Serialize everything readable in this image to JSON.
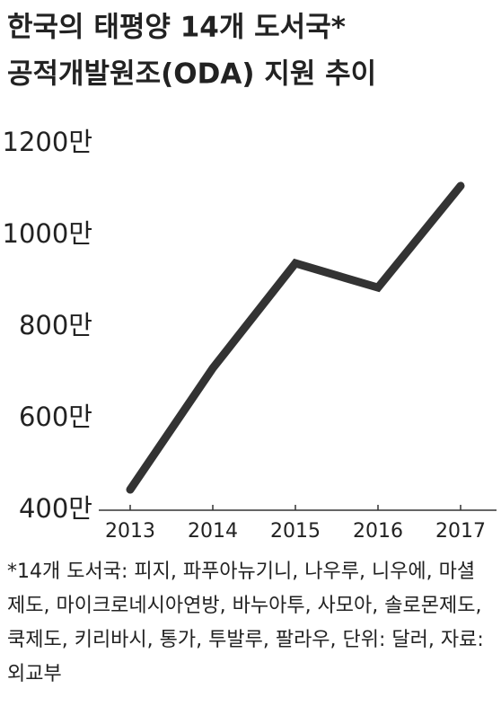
{
  "chart_data": {
    "type": "line",
    "title": [
      "한국의 태평양 14개 도서국*",
      "공적개발원조(ODA) 지원 추이"
    ],
    "categories": [
      "2013",
      "2014",
      "2015",
      "2016",
      "2017"
    ],
    "values": [
      445,
      710,
      939,
      886,
      1108
    ],
    "color": "#333333",
    "ylim": [
      400,
      1200
    ],
    "yticks": [
      {
        "value": 400,
        "label": "400만"
      },
      {
        "value": 600,
        "label": "600만"
      },
      {
        "value": 800,
        "label": "800만"
      },
      {
        "value": 1000,
        "label": "1000만"
      },
      {
        "value": 1200,
        "label": "1200만"
      }
    ],
    "grid": false,
    "note": "*14개 도서국: 피지, 파푸아뉴기니, 나우루, 니우에, 마셜제도, 마이크로네시아연방, 바누아투, 사모아, 솔로몬제도, 쿡제도, 키리바시, 통가, 투발루, 팔라우, 단위: 달러, 자료: 외교부"
  }
}
